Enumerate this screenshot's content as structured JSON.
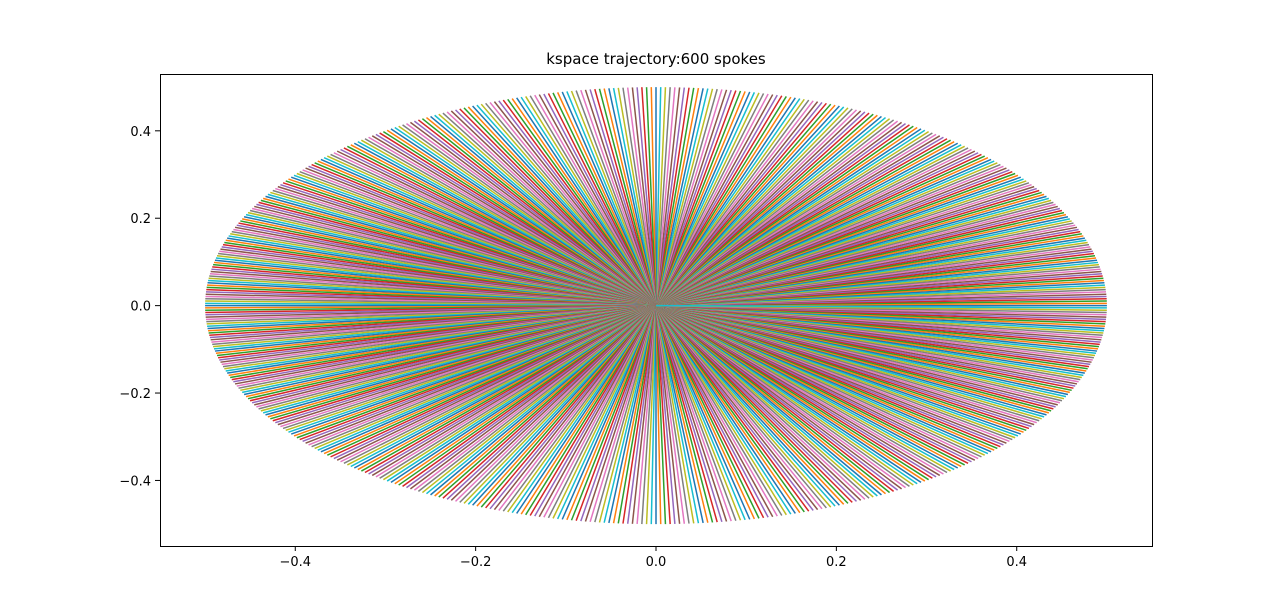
{
  "chart_data": {
    "type": "line",
    "title": "kspace trajectory:600 spokes",
    "xlabel": "",
    "ylabel": "",
    "xlim": [
      -0.55,
      0.55
    ],
    "ylim": [
      -0.55,
      0.53
    ],
    "x_ticks": [
      {
        "value": -0.4,
        "label": "−0.4"
      },
      {
        "value": -0.2,
        "label": "−0.2"
      },
      {
        "value": 0.0,
        "label": "0.0"
      },
      {
        "value": 0.2,
        "label": "0.2"
      },
      {
        "value": 0.4,
        "label": "0.4"
      }
    ],
    "y_ticks": [
      {
        "value": -0.4,
        "label": "−0.4"
      },
      {
        "value": -0.2,
        "label": "−0.2"
      },
      {
        "value": 0.0,
        "label": "0.0"
      },
      {
        "value": 0.2,
        "label": "0.2"
      },
      {
        "value": 0.4,
        "label": "0.4"
      }
    ],
    "spokes": {
      "count": 600,
      "radius": 0.5,
      "center": [
        0,
        0
      ],
      "angle_range_deg": [
        0,
        360
      ]
    },
    "series_colors": [
      "#1f77b4",
      "#ff7f0e",
      "#2ca02c",
      "#d62728",
      "#9467bd",
      "#8c564b",
      "#e377c2",
      "#7f7f7f",
      "#bcbd22",
      "#17becf"
    ],
    "grid": false,
    "legend": "none"
  }
}
